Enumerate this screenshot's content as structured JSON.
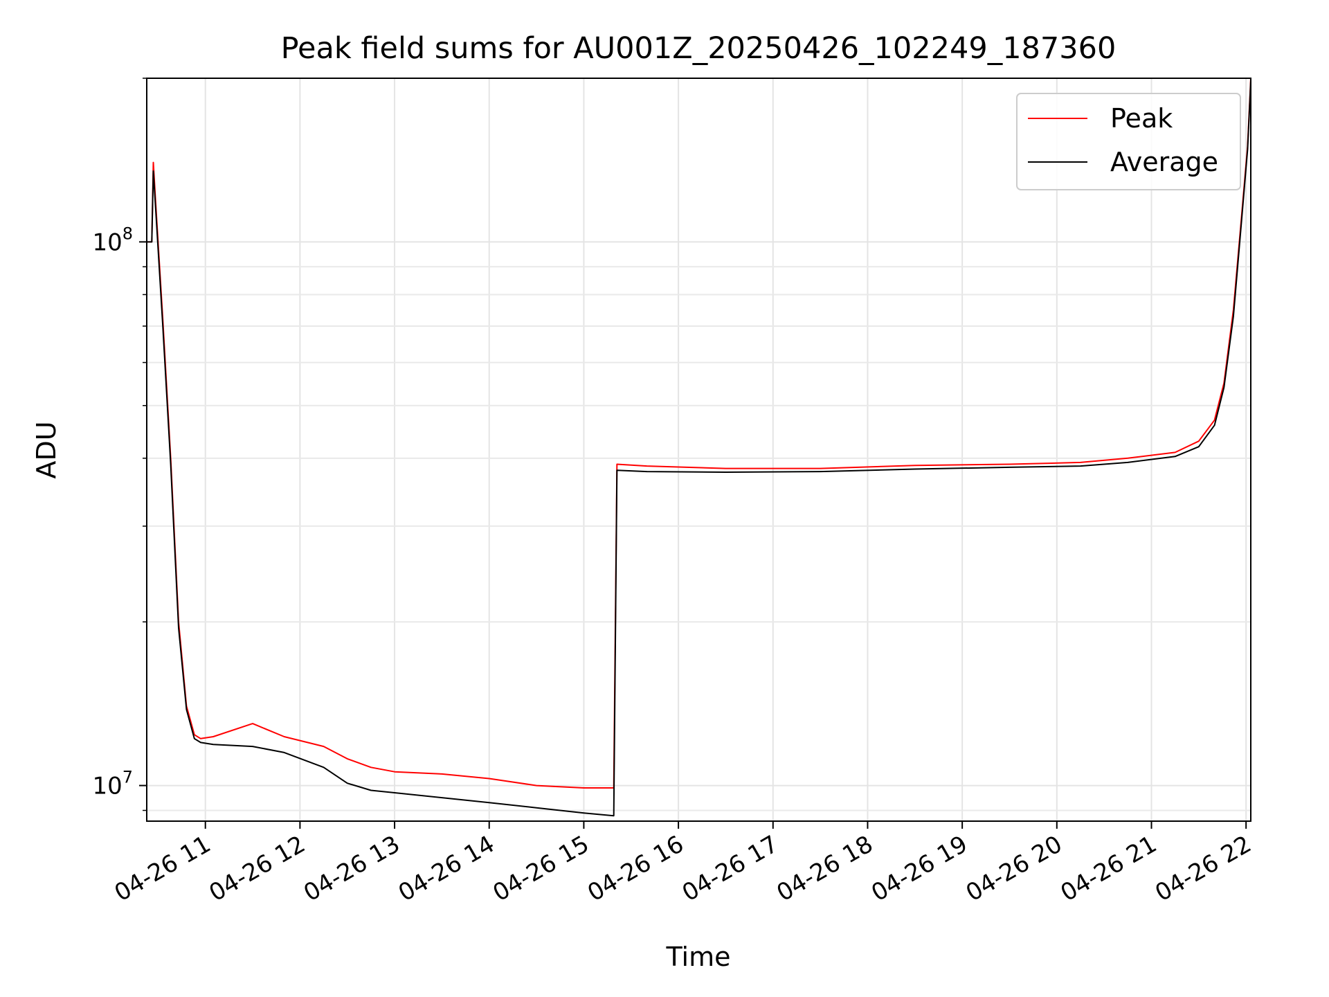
{
  "chart_data": {
    "type": "line",
    "title": "Peak field sums for AU001Z_20250426_102249_187360",
    "xlabel": "Time",
    "ylabel": "ADU",
    "xscale": "time",
    "yscale": "log",
    "xlim": [
      "2025-04-26T10:22:49",
      "2025-04-26T22:03:00"
    ],
    "ylim": [
      8600000,
      200000000
    ],
    "grid": true,
    "legend": "top-right",
    "x_ticks": [
      {
        "t": "2025-04-26T11:00",
        "label": "04-26 11"
      },
      {
        "t": "2025-04-26T12:00",
        "label": "04-26 12"
      },
      {
        "t": "2025-04-26T13:00",
        "label": "04-26 13"
      },
      {
        "t": "2025-04-26T14:00",
        "label": "04-26 14"
      },
      {
        "t": "2025-04-26T15:00",
        "label": "04-26 15"
      },
      {
        "t": "2025-04-26T16:00",
        "label": "04-26 16"
      },
      {
        "t": "2025-04-26T17:00",
        "label": "04-26 17"
      },
      {
        "t": "2025-04-26T18:00",
        "label": "04-26 18"
      },
      {
        "t": "2025-04-26T19:00",
        "label": "04-26 19"
      },
      {
        "t": "2025-04-26T20:00",
        "label": "04-26 20"
      },
      {
        "t": "2025-04-26T21:00",
        "label": "04-26 21"
      },
      {
        "t": "2025-04-26T22:00",
        "label": "04-26 22"
      }
    ],
    "y_major_ticks": [
      {
        "v": 10000000,
        "base": "10",
        "exp": "7"
      },
      {
        "v": 100000000,
        "base": "10",
        "exp": "8"
      }
    ],
    "y_minor_ticks": [
      9000000,
      20000000,
      30000000,
      40000000,
      50000000,
      60000000,
      70000000,
      80000000,
      90000000,
      200000000
    ],
    "series": [
      {
        "name": "Peak",
        "color": "#ff0000",
        "x": [
          "2025-04-26T10:22:49",
          "2025-04-26T10:26:00",
          "2025-04-26T10:27:00",
          "2025-04-26T10:28:30",
          "2025-04-26T10:33:00",
          "2025-04-26T10:38:00",
          "2025-04-26T10:43:00",
          "2025-04-26T10:48:00",
          "2025-04-26T10:53:00",
          "2025-04-26T10:57:00",
          "2025-04-26T11:05:00",
          "2025-04-26T11:30:00",
          "2025-04-26T11:50:00",
          "2025-04-26T12:15:00",
          "2025-04-26T12:30:00",
          "2025-04-26T12:45:00",
          "2025-04-26T13:00:00",
          "2025-04-26T13:30:00",
          "2025-04-26T14:00:00",
          "2025-04-26T14:30:00",
          "2025-04-26T15:00:00",
          "2025-04-26T15:19:00",
          "2025-04-26T15:21:00",
          "2025-04-26T15:40:00",
          "2025-04-26T16:30:00",
          "2025-04-26T17:30:00",
          "2025-04-26T18:30:00",
          "2025-04-26T19:30:00",
          "2025-04-26T20:15:00",
          "2025-04-26T20:45:00",
          "2025-04-26T21:15:00",
          "2025-04-26T21:30:00",
          "2025-04-26T21:40:00",
          "2025-04-26T21:46:00",
          "2025-04-26T21:52:00",
          "2025-04-26T21:57:00",
          "2025-04-26T22:01:00",
          "2025-04-26T22:03:00"
        ],
        "y": [
          100000000,
          100000000,
          140000000,
          118000000,
          72000000,
          40000000,
          20000000,
          14000000,
          12400000,
          12200000,
          12300000,
          13000000,
          12300000,
          11800000,
          11200000,
          10800000,
          10600000,
          10500000,
          10300000,
          10000000,
          9900000,
          9900000,
          39000000,
          38700000,
          38300000,
          38300000,
          38800000,
          39000000,
          39300000,
          40000000,
          41000000,
          43000000,
          47000000,
          55000000,
          75000000,
          110000000,
          150000000,
          200000000
        ]
      },
      {
        "name": "Average",
        "color": "#000000",
        "x": [
          "2025-04-26T10:22:49",
          "2025-04-26T10:26:00",
          "2025-04-26T10:27:00",
          "2025-04-26T10:28:30",
          "2025-04-26T10:33:00",
          "2025-04-26T10:38:00",
          "2025-04-26T10:43:00",
          "2025-04-26T10:48:00",
          "2025-04-26T10:53:00",
          "2025-04-26T10:57:00",
          "2025-04-26T11:05:00",
          "2025-04-26T11:30:00",
          "2025-04-26T11:50:00",
          "2025-04-26T12:15:00",
          "2025-04-26T12:30:00",
          "2025-04-26T12:45:00",
          "2025-04-26T13:00:00",
          "2025-04-26T13:30:00",
          "2025-04-26T14:00:00",
          "2025-04-26T14:30:00",
          "2025-04-26T15:00:00",
          "2025-04-26T15:19:00",
          "2025-04-26T15:21:00",
          "2025-04-26T15:40:00",
          "2025-04-26T16:30:00",
          "2025-04-26T17:30:00",
          "2025-04-26T18:30:00",
          "2025-04-26T19:30:00",
          "2025-04-26T20:15:00",
          "2025-04-26T20:45:00",
          "2025-04-26T21:15:00",
          "2025-04-26T21:30:00",
          "2025-04-26T21:40:00",
          "2025-04-26T21:46:00",
          "2025-04-26T21:52:00",
          "2025-04-26T21:57:00",
          "2025-04-26T22:01:00",
          "2025-04-26T22:03:00"
        ],
        "y": [
          100000000,
          100000000,
          135000000,
          115000000,
          70000000,
          39000000,
          19500000,
          13800000,
          12200000,
          12000000,
          11900000,
          11800000,
          11500000,
          10800000,
          10100000,
          9800000,
          9700000,
          9500000,
          9300000,
          9100000,
          8900000,
          8800000,
          38000000,
          37800000,
          37700000,
          37800000,
          38200000,
          38500000,
          38700000,
          39300000,
          40300000,
          42000000,
          46000000,
          54000000,
          73000000,
          108000000,
          148000000,
          198000000
        ]
      }
    ]
  }
}
